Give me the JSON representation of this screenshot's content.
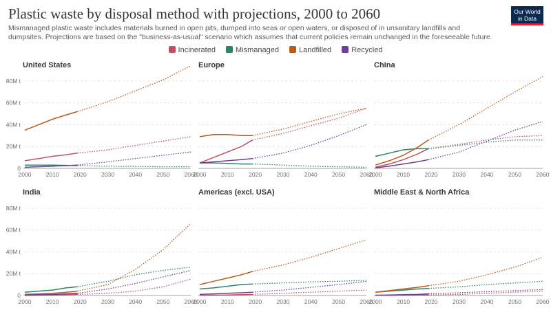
{
  "header": {
    "title": "Plastic waste by disposal method with projections, 2000 to 2060",
    "subtitle": "Mismanaged plastic waste includes materials burned in open pits, dumped into seas or open waters, or disposed of in unsanitary landfills and dumpsites. Projections are based on the \"business-as-usual\" scenario which assumes that current policies remain unchanged in the foreseeable future.",
    "logo_line1": "Our World",
    "logo_line2": "in Data"
  },
  "legend": [
    {
      "name": "Incinerated",
      "color": "#c15065"
    },
    {
      "name": "Mismanaged",
      "color": "#2c8465"
    },
    {
      "name": "Landfilled",
      "color": "#be5915"
    },
    {
      "name": "Recycled",
      "color": "#6d3e91"
    }
  ],
  "chart_data": {
    "type": "line",
    "x_ticks": [
      "2000",
      "2010",
      "2020",
      "2030",
      "2040",
      "2050",
      "2060"
    ],
    "y_ticks": [
      "0",
      "20M t",
      "40M t",
      "60M t",
      "80M t"
    ],
    "ylim": [
      0,
      90
    ],
    "xlim": [
      2000,
      2060
    ],
    "historical_end": 2019,
    "panels": [
      {
        "title": "United States",
        "x": [
          2000,
          2005,
          2010,
          2015,
          2019,
          2030,
          2040,
          2050,
          2060
        ],
        "series": [
          {
            "name": "Incinerated",
            "values": [
              7,
              9,
              11,
              12.5,
              14,
              17,
              21,
              25,
              29
            ]
          },
          {
            "name": "Mismanaged",
            "values": [
              3,
              3,
              3,
              2.8,
              2.5,
              2,
              1.8,
              1.5,
              1.5
            ]
          },
          {
            "name": "Landfilled",
            "values": [
              35,
              40,
              45,
              49,
              52,
              61,
              71,
              81,
              94
            ]
          },
          {
            "name": "Recycled",
            "values": [
              1,
              1.5,
              2,
              2.5,
              3,
              6,
              9,
              12,
              15
            ]
          }
        ]
      },
      {
        "title": "Europe",
        "x": [
          2000,
          2005,
          2010,
          2015,
          2019,
          2030,
          2040,
          2050,
          2060
        ],
        "series": [
          {
            "name": "Incinerated",
            "values": [
              5,
              10,
              15,
              20,
              26,
              32,
              39,
              46,
              55
            ]
          },
          {
            "name": "Mismanaged",
            "values": [
              5,
              5,
              4.5,
              4,
              4,
              3,
              2,
              1.5,
              1
            ]
          },
          {
            "name": "Landfilled",
            "values": [
              29,
              31,
              31,
              30,
              30,
              36,
              43,
              50,
              55
            ]
          },
          {
            "name": "Recycled",
            "values": [
              5,
              6,
              7,
              8,
              9,
              14,
              21,
              30,
              40
            ]
          }
        ]
      },
      {
        "title": "China",
        "x": [
          2000,
          2005,
          2010,
          2015,
          2019,
          2030,
          2040,
          2050,
          2060
        ],
        "series": [
          {
            "name": "Incinerated",
            "values": [
              1,
              4,
              8,
              13,
              18,
              22,
              26,
              29,
              30
            ]
          },
          {
            "name": "Mismanaged",
            "values": [
              11,
              14,
              17,
              18,
              18,
              21,
              24,
              26,
              26
            ]
          },
          {
            "name": "Landfilled",
            "values": [
              3,
              7,
              12,
              19,
              26,
              40,
              55,
              70,
              84
            ]
          },
          {
            "name": "Recycled",
            "values": [
              0.5,
              2,
              4,
              6,
              8,
              15,
              25,
              35,
              43
            ]
          }
        ]
      },
      {
        "title": "India",
        "x": [
          2000,
          2005,
          2010,
          2015,
          2019,
          2030,
          2040,
          2050,
          2060
        ],
        "series": [
          {
            "name": "Incinerated",
            "values": [
              0.2,
              0.3,
              0.5,
              0.8,
              1,
              2,
              4,
              8,
              15
            ]
          },
          {
            "name": "Mismanaged",
            "values": [
              3,
              4,
              5,
              7,
              8,
              13,
              19,
              23,
              26
            ]
          },
          {
            "name": "Landfilled",
            "values": [
              1,
              1.5,
              2,
              3,
              4,
              10,
              24,
              42,
              66
            ]
          },
          {
            "name": "Recycled",
            "values": [
              0.5,
              0.8,
              1,
              1.5,
              2,
              6,
              11,
              17,
              23
            ]
          }
        ]
      },
      {
        "title": "Americas (excl. USA)",
        "x": [
          2000,
          2005,
          2010,
          2015,
          2019,
          2030,
          2040,
          2050,
          2060
        ],
        "series": [
          {
            "name": "Incinerated",
            "values": [
              0.2,
              0.3,
              0.5,
              0.8,
              1,
              2,
              3,
              4,
              5
            ]
          },
          {
            "name": "Mismanaged",
            "values": [
              6,
              7,
              8.5,
              10,
              10.5,
              11.5,
              12.5,
              13,
              14
            ]
          },
          {
            "name": "Landfilled",
            "values": [
              10,
              13,
              16,
              19,
              22,
              28,
              35,
              43,
              51
            ]
          },
          {
            "name": "Recycled",
            "values": [
              1,
              1.5,
              2,
              2.5,
              3,
              5,
              7.5,
              10,
              13
            ]
          }
        ]
      },
      {
        "title": "Middle East & North Africa",
        "x": [
          2000,
          2005,
          2010,
          2015,
          2019,
          2030,
          2040,
          2050,
          2060
        ],
        "series": [
          {
            "name": "Incinerated",
            "values": [
              0.1,
              0.2,
              0.3,
              0.4,
              0.5,
              1,
              2,
              3,
              4
            ]
          },
          {
            "name": "Mismanaged",
            "values": [
              3,
              4,
              5,
              6,
              6.5,
              8,
              10,
              11.5,
              13
            ]
          },
          {
            "name": "Landfilled",
            "values": [
              3,
              4.5,
              6,
              7.5,
              9,
              13,
              19,
              26,
              35
            ]
          },
          {
            "name": "Recycled",
            "values": [
              0.3,
              0.5,
              0.8,
              1,
              1.5,
              2.5,
              3.5,
              4.5,
              5.5
            ]
          }
        ]
      }
    ]
  }
}
